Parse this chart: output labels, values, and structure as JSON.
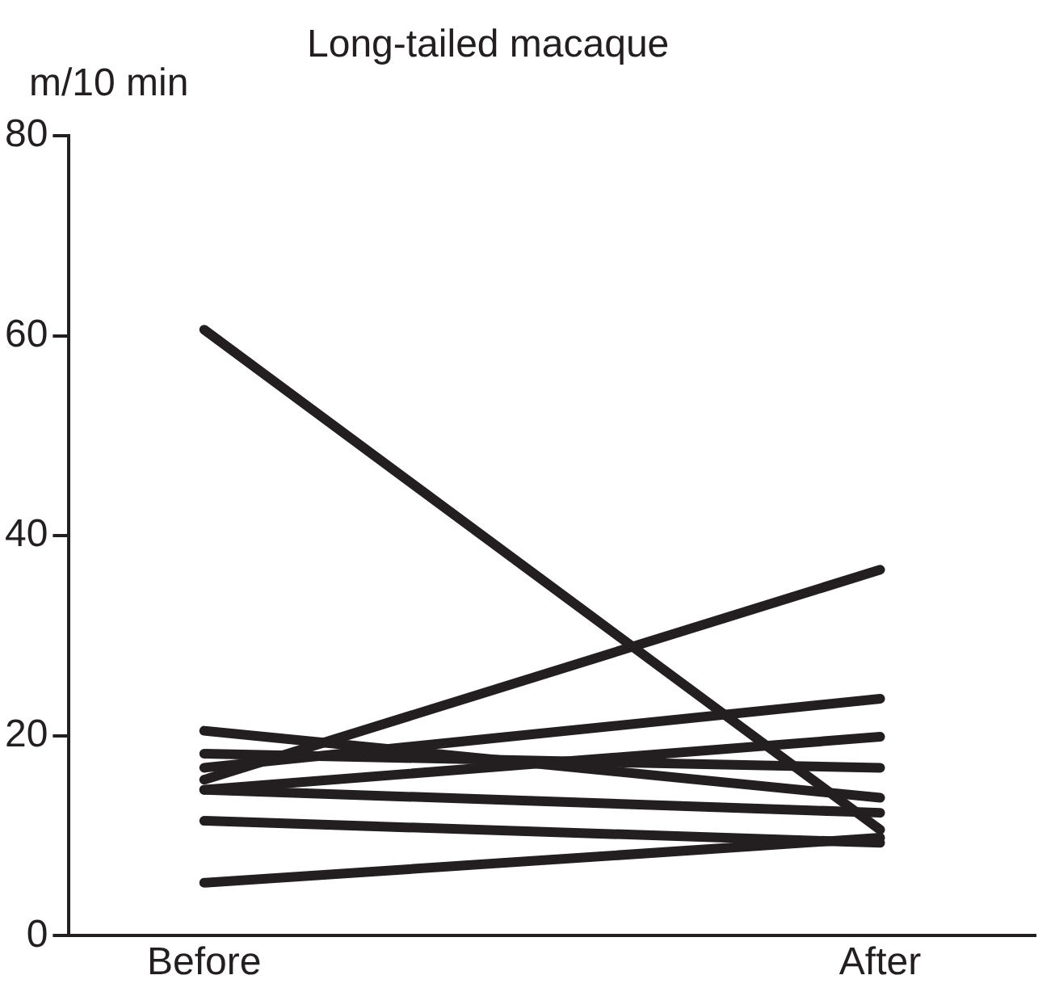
{
  "chart_data": {
    "type": "line",
    "title": "Long-tailed macaque",
    "ylabel": "m/10 min",
    "categories": [
      "Before",
      "After"
    ],
    "series": [
      {
        "color": "#231f20",
        "values": [
          60.6,
          10.6
        ]
      },
      {
        "color": "#231f20",
        "values": [
          20.5,
          13.8
        ]
      },
      {
        "color": "#231f20",
        "values": [
          18.2,
          16.8
        ]
      },
      {
        "color": "#231f20",
        "values": [
          16.8,
          23.7
        ]
      },
      {
        "color": "#231f20",
        "values": [
          15.6,
          36.6
        ]
      },
      {
        "color": "#231f20",
        "values": [
          14.6,
          19.9
        ]
      },
      {
        "color": "#231f20",
        "values": [
          14.6,
          12.3
        ]
      },
      {
        "color": "#231f20",
        "values": [
          11.5,
          9.3
        ]
      },
      {
        "color": "#231f20",
        "values": [
          5.3,
          9.8
        ]
      }
    ],
    "ylim": [
      0,
      80
    ],
    "yticks": [
      0,
      20,
      40,
      60,
      80
    ],
    "grid": false,
    "legend": false,
    "marker": "none",
    "line_style": "solid"
  }
}
